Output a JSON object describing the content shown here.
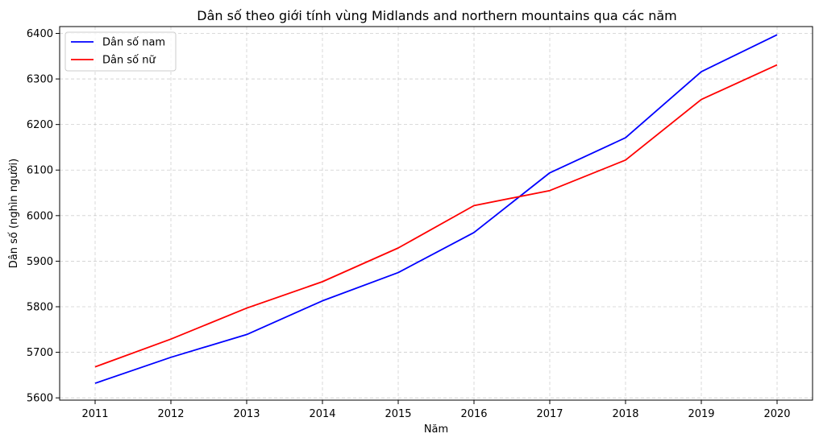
{
  "chart_data": {
    "type": "line",
    "title": "Dân số theo giới tính vùng Midlands and northern mountains qua các năm",
    "xlabel": "Năm",
    "ylabel": "Dân số (nghìn người)",
    "x": [
      "2011",
      "2012",
      "2013",
      "2014",
      "2015",
      "2016",
      "2017",
      "2018",
      "2019",
      "2020"
    ],
    "ylim": [
      5595,
      6415
    ],
    "yticks": [
      5600,
      5700,
      5800,
      5900,
      6000,
      6100,
      6200,
      6300,
      6400
    ],
    "grid": true,
    "legend_position": "top-left",
    "series": [
      {
        "name": "Dân số nam",
        "color": "#0000ff",
        "values": [
          5632,
          5689,
          5739,
          5813,
          5875,
          5963,
          6094,
          6171,
          6316,
          6397
        ]
      },
      {
        "name": "Dân số nữ",
        "color": "#ff0000",
        "values": [
          5668,
          5729,
          5797,
          5855,
          5929,
          6022,
          6055,
          6122,
          6255,
          6331
        ]
      }
    ]
  }
}
